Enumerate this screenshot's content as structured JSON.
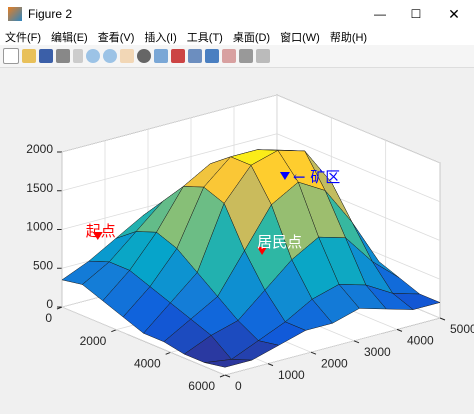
{
  "window": {
    "title": "Figure 2"
  },
  "menu": [
    "文件(F)",
    "编辑(E)",
    "查看(V)",
    "插入(I)",
    "工具(T)",
    "桌面(D)",
    "窗口(W)",
    "帮助(H)"
  ],
  "chart_data": {
    "type": "surface",
    "x": [
      0,
      750,
      1500,
      2250,
      3000,
      3750,
      4500,
      5250,
      6000
    ],
    "y": [
      0,
      625,
      1250,
      1875,
      2500,
      3125,
      3750,
      4375,
      5000
    ],
    "z": [
      [
        350,
        500,
        700,
        900,
        1000,
        1100,
        1100,
        1000,
        900
      ],
      [
        400,
        600,
        900,
        1200,
        1300,
        1300,
        1200,
        1100,
        900
      ],
      [
        300,
        600,
        1000,
        1500,
        1700,
        1600,
        1400,
        1200,
        800
      ],
      [
        200,
        500,
        900,
        1600,
        1900,
        1900,
        1800,
        1300,
        700
      ],
      [
        100,
        400,
        700,
        1500,
        1900,
        2000,
        1900,
        1400,
        600
      ],
      [
        100,
        300,
        500,
        1000,
        1500,
        1700,
        1500,
        1000,
        400
      ],
      [
        50,
        200,
        300,
        600,
        900,
        1100,
        1000,
        600,
        300
      ],
      [
        50,
        0,
        150,
        300,
        500,
        600,
        500,
        300,
        200
      ],
      [
        100,
        100,
        200,
        300,
        300,
        400,
        300,
        200,
        200
      ]
    ],
    "xlim": [
      0,
      6000
    ],
    "ylim": [
      0,
      5000
    ],
    "zlim": [
      0,
      2000
    ],
    "xticks": [
      0,
      2000,
      4000,
      6000
    ],
    "yticks": [
      0,
      1000,
      2000,
      3000,
      4000,
      5000
    ],
    "zticks": [
      0,
      500,
      1000,
      1500,
      2000
    ],
    "grid": true,
    "annotations": [
      {
        "text": "起点",
        "x": 1080,
        "y": 150,
        "z": 1000,
        "color": "#ff0000",
        "marker": "down"
      },
      {
        "text": "居民点",
        "x": 2980,
        "y": 2770,
        "z": 700,
        "color": "#ff0000",
        "marker": "down"
      },
      {
        "text": "← 矿区",
        "x": 3030,
        "y": 3270,
        "z": 1600,
        "color": "#0000ff",
        "marker": "down"
      }
    ]
  }
}
